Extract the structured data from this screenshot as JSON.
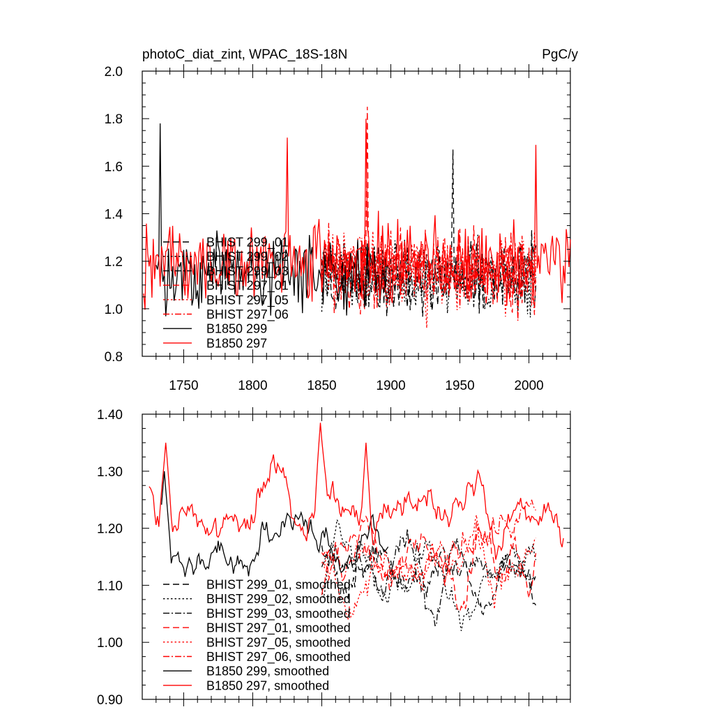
{
  "header": {
    "title": "photoC_diat_zint, WPAC_18S-18N",
    "units": "PgC/y"
  },
  "colors": {
    "black": "#000000",
    "red": "#ff0000",
    "background": "#ffffff"
  },
  "chart_data": [
    {
      "type": "line",
      "panel": "top",
      "xlim": [
        1720,
        2030
      ],
      "ylim": [
        0.8,
        2.0
      ],
      "x_ticks": [
        1750,
        1800,
        1850,
        1900,
        1950,
        2000
      ],
      "y_ticks": [
        0.8,
        1.0,
        1.2,
        1.4,
        1.6,
        1.8,
        2.0
      ],
      "y_tick_labels": [
        "0.8",
        "1.0",
        "1.2",
        "1.4",
        "1.6",
        "1.8",
        "2.0"
      ],
      "legend_position": "lower-left",
      "series": [
        {
          "name": "BHIST 299_01",
          "color": "#000000",
          "dash": "dash",
          "x_range": [
            1850,
            2005
          ],
          "mean": 1.13,
          "amp": 0.13
        },
        {
          "name": "BHIST 299_02",
          "color": "#000000",
          "dash": "dot",
          "x_range": [
            1850,
            2005
          ],
          "mean": 1.12,
          "amp": 0.13
        },
        {
          "name": "BHIST 299_03",
          "color": "#000000",
          "dash": "dashdot",
          "x_range": [
            1850,
            2005
          ],
          "mean": 1.13,
          "amp": 0.12
        },
        {
          "name": "BHIST 297_01",
          "color": "#ff0000",
          "dash": "dash",
          "x_range": [
            1850,
            2005
          ],
          "mean": 1.16,
          "amp": 0.14
        },
        {
          "name": "BHIST 297_05",
          "color": "#ff0000",
          "dash": "dot",
          "x_range": [
            1850,
            2005
          ],
          "mean": 1.15,
          "amp": 0.14
        },
        {
          "name": "BHIST 297_06",
          "color": "#ff0000",
          "dash": "dashdot",
          "x_range": [
            1850,
            2005
          ],
          "mean": 1.16,
          "amp": 0.14
        },
        {
          "name": "B1850 299",
          "color": "#000000",
          "dash": "solid",
          "x_range": [
            1730,
            1898
          ],
          "mean": 1.15,
          "amp": 0.14
        },
        {
          "name": "B1850 297",
          "color": "#ff0000",
          "dash": "solid",
          "x_range": [
            1721,
            2030
          ],
          "mean": 1.2,
          "amp": 0.14
        }
      ],
      "peaks": [
        {
          "series": "B1850 299",
          "x": 1733,
          "y": 1.78
        },
        {
          "series": "B1850 297",
          "x": 1882,
          "y": 1.8
        },
        {
          "series": "BHIST 297_01",
          "x": 1883,
          "y": 1.85
        },
        {
          "series": "BHIST 299_01",
          "x": 1945,
          "y": 1.67
        },
        {
          "series": "B1850 297",
          "x": 1825,
          "y": 1.72
        },
        {
          "series": "B1850 297",
          "x": 2005,
          "y": 1.69
        }
      ]
    },
    {
      "type": "line",
      "panel": "bottom",
      "xlim": [
        1720,
        2030
      ],
      "ylim": [
        0.9,
        1.4
      ],
      "x_ticks": [
        1750,
        1800,
        1850,
        1900,
        1950,
        2000
      ],
      "y_ticks": [
        0.9,
        1.0,
        1.1,
        1.2,
        1.3,
        1.4
      ],
      "y_tick_labels": [
        "0.90",
        "1.00",
        "1.10",
        "1.20",
        "1.30",
        "1.40"
      ],
      "legend_position": "lower-left",
      "series": [
        {
          "name": "BHIST 299_01, smoothed",
          "color": "#000000",
          "dash": "dash",
          "x_range": [
            1850,
            2005
          ],
          "mean": 1.12,
          "amp": 0.05
        },
        {
          "name": "BHIST 299_02, smoothed",
          "color": "#000000",
          "dash": "dot",
          "x_range": [
            1850,
            2005
          ],
          "mean": 1.11,
          "amp": 0.05
        },
        {
          "name": "BHIST 299_03, smoothed",
          "color": "#000000",
          "dash": "dashdot",
          "x_range": [
            1850,
            2005
          ],
          "mean": 1.12,
          "amp": 0.05
        },
        {
          "name": "BHIST 297_01, smoothed",
          "color": "#ff0000",
          "dash": "dash",
          "x_range": [
            1850,
            2005
          ],
          "mean": 1.16,
          "amp": 0.05
        },
        {
          "name": "BHIST 297_05, smoothed",
          "color": "#ff0000",
          "dash": "dot",
          "x_range": [
            1850,
            2005
          ],
          "mean": 1.14,
          "amp": 0.05
        },
        {
          "name": "BHIST 297_06, smoothed",
          "color": "#ff0000",
          "dash": "dashdot",
          "x_range": [
            1850,
            2005
          ],
          "mean": 1.15,
          "amp": 0.05
        },
        {
          "name": "B1850 299, smoothed",
          "color": "#000000",
          "dash": "solid",
          "x_range": [
            1734,
            1898
          ],
          "mean": 1.16,
          "amp": 0.05
        },
        {
          "name": "B1850 297, smoothed",
          "color": "#ff0000",
          "dash": "solid",
          "x_range": [
            1725,
            2025
          ],
          "mean": 1.23,
          "amp": 0.05
        }
      ],
      "peaks": [
        {
          "series": "B1850 297, smoothed",
          "x": 1849,
          "y": 1.385
        },
        {
          "series": "B1850 297, smoothed",
          "x": 1737,
          "y": 1.35
        },
        {
          "series": "B1850 297, smoothed",
          "x": 1882,
          "y": 1.35
        },
        {
          "series": "B1850 299, smoothed",
          "x": 1736,
          "y": 1.3
        }
      ]
    }
  ]
}
